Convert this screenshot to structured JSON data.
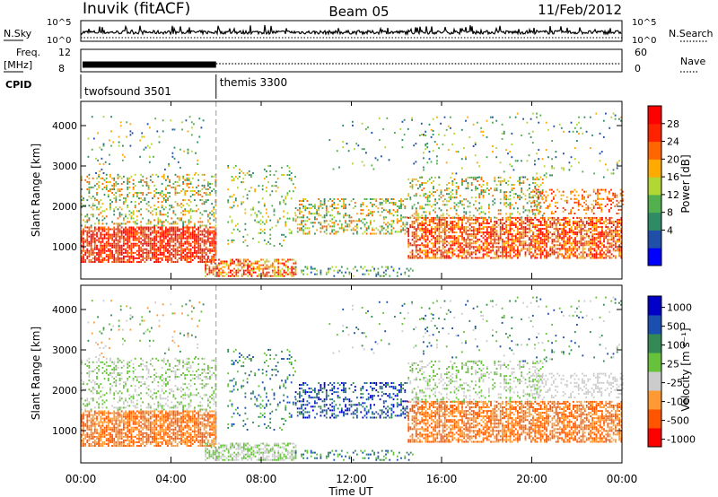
{
  "header": {
    "station": "Inuvik (fitACF)",
    "beam": "Beam 05",
    "date": "11/Feb/2012"
  },
  "chart_data": [
    {
      "type": "line",
      "panel": "noise",
      "left_label": "N.Sky",
      "right_label": "N.Search",
      "left_ticks": [
        "10^5",
        "10^0"
      ],
      "right_ticks": [
        "10^5",
        "10^0"
      ],
      "scale": "log"
    },
    {
      "type": "line",
      "panel": "frequency",
      "left_label_top": "Freq.",
      "left_label_bottom": "[MHz]",
      "right_label": "Nave",
      "left_ticks": [
        "12",
        "8"
      ],
      "right_ticks": [
        "60",
        "0"
      ]
    },
    {
      "type": "table",
      "panel": "cpid",
      "label": "CPID",
      "segments": [
        {
          "name": "twofsound 3501",
          "start_h": 0,
          "end_h": 6
        },
        {
          "name": "themis 3300",
          "start_h": 6,
          "end_h": 24
        }
      ]
    },
    {
      "type": "heatmap",
      "panel": "power",
      "ylabel": "Slant Range [km]",
      "yticks": [
        "1000",
        "2000",
        "3000",
        "4000"
      ],
      "ylim": [
        200,
        4600
      ],
      "colorbar_label": "Power [dB]",
      "colorbar_ticks": [
        "28",
        "24",
        "20",
        "16",
        "12",
        "8",
        "4"
      ],
      "colorbar_range": [
        0,
        32
      ]
    },
    {
      "type": "heatmap",
      "panel": "velocity",
      "ylabel": "Slant Range [km]",
      "yticks": [
        "1000",
        "2000",
        "3000",
        "4000"
      ],
      "ylim": [
        200,
        4600
      ],
      "colorbar_label": "Velocity [m s⁻¹]",
      "colorbar_ticks": [
        "1000",
        "500",
        "100",
        "25",
        "-25",
        "-100",
        "-500",
        "-1000"
      ]
    }
  ],
  "xaxis": {
    "label": "Time UT",
    "ticks": [
      "00:00",
      "04:00",
      "08:00",
      "12:00",
      "16:00",
      "20:00",
      "00:00"
    ],
    "range_hours": [
      0,
      24
    ]
  },
  "colors": {
    "power": [
      "#0000ff",
      "#1f4fa8",
      "#2f8a66",
      "#52b04e",
      "#b2d633",
      "#ffaa00",
      "#ff6600",
      "#ff2200",
      "#ff0000"
    ],
    "velocity": [
      "#ff0000",
      "#ff5500",
      "#ff9933",
      "#cccccc",
      "#66c23a",
      "#338a55",
      "#1a4fb0",
      "#0000c8"
    ]
  }
}
